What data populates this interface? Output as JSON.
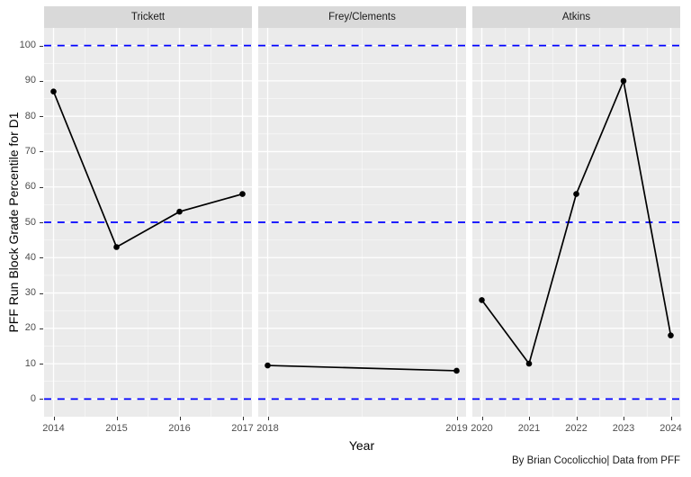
{
  "chart_data": {
    "type": "line",
    "title": "",
    "xlabel": "Year",
    "ylabel": "PFF Run Block Grade Percentile for D1",
    "caption": "By Brian Cocolicchio| Data from PFF",
    "ylim": [
      -5,
      105
    ],
    "y_ticks": [
      0,
      10,
      20,
      30,
      40,
      50,
      60,
      70,
      80,
      90,
      100
    ],
    "grid": "on",
    "legend": "none",
    "reference_lines": {
      "values": [
        100,
        50,
        0
      ],
      "style": "dashed",
      "color": "#0000ff"
    },
    "facets": [
      {
        "label": "Trickett",
        "x_ticks": [
          2014,
          2015,
          2016,
          2017
        ],
        "x_range": [
          2013.85,
          2017.15
        ],
        "x": [
          2014,
          2015,
          2016,
          2017
        ],
        "y": [
          87,
          43,
          53,
          58
        ]
      },
      {
        "label": "Frey/Clements",
        "x_ticks": [
          2018,
          2019
        ],
        "x_range": [
          2017.95,
          2019.05
        ],
        "x": [
          2018,
          2019
        ],
        "y": [
          9.5,
          8
        ]
      },
      {
        "label": "Atkins",
        "x_ticks": [
          2020,
          2021,
          2022,
          2023,
          2024
        ],
        "x_range": [
          2019.8,
          2024.2
        ],
        "x": [
          2020,
          2021,
          2022,
          2023,
          2024
        ],
        "y": [
          28,
          10,
          58,
          90,
          18
        ]
      }
    ],
    "colors": {
      "panel_bg": "#ebebeb",
      "strip_bg": "#d9d9d9",
      "grid_major": "#ffffff",
      "grid_minor": "#ffffff",
      "series_line": "#000000",
      "point": "#000000",
      "axis_text": "#4d4d4d",
      "reference_line": "#0000ff"
    }
  }
}
